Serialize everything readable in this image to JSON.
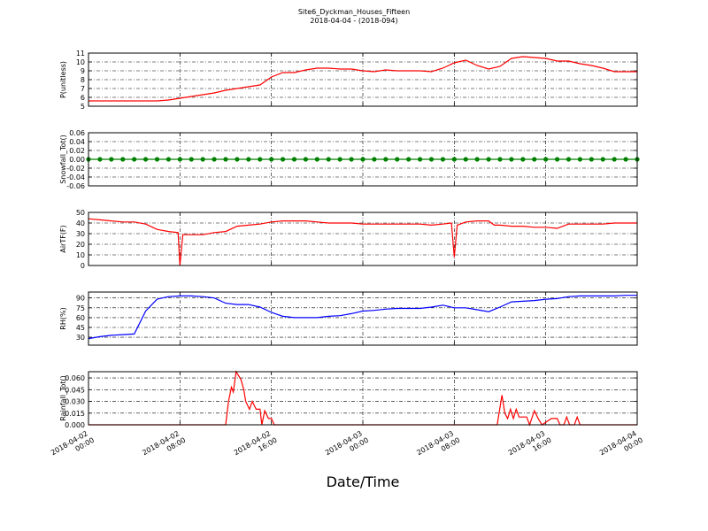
{
  "title": "Site6_Dyckman_Houses_Fifteen",
  "subtitle": "2018-04-04 - (2018-094)",
  "x_axis": {
    "label": "Date/Time",
    "xlim": [
      "2018-04-02 00:00",
      "2018-04-04 00:00"
    ],
    "xticks": [
      {
        "value": "2018-04-02 00:00",
        "label": "2018-04-02 00:00"
      },
      {
        "value": "2018-04-02 08:00",
        "label": "2018-04-02 08:00"
      },
      {
        "value": "2018-04-02 16:00",
        "label": "2018-04-02 16:00"
      },
      {
        "value": "2018-04-03 00:00",
        "label": "2018-04-03 00:00"
      },
      {
        "value": "2018-04-03 08:00",
        "label": "2018-04-03 08:00"
      },
      {
        "value": "2018-04-03 16:00",
        "label": "2018-04-03 16:00"
      },
      {
        "value": "2018-04-04 00:00",
        "label": "2018-04-04 00:00"
      }
    ]
  },
  "chart_data": [
    {
      "type": "line",
      "ylabel": "P(unitless)",
      "color": "#ff0000",
      "ylim": [
        5,
        11
      ],
      "yticks": [
        5,
        6,
        7,
        8,
        9,
        10,
        11
      ],
      "grid": true,
      "x": [
        "2018-04-02 00:00",
        "2018-04-02 01:00",
        "2018-04-02 02:00",
        "2018-04-02 03:00",
        "2018-04-02 04:00",
        "2018-04-02 05:00",
        "2018-04-02 06:00",
        "2018-04-02 07:00",
        "2018-04-02 08:00",
        "2018-04-02 09:00",
        "2018-04-02 10:00",
        "2018-04-02 11:00",
        "2018-04-02 12:00",
        "2018-04-02 13:00",
        "2018-04-02 14:00",
        "2018-04-02 15:00",
        "2018-04-02 16:00",
        "2018-04-02 17:00",
        "2018-04-02 18:00",
        "2018-04-02 19:00",
        "2018-04-02 20:00",
        "2018-04-02 21:00",
        "2018-04-02 22:00",
        "2018-04-02 23:00",
        "2018-04-03 00:00",
        "2018-04-03 01:00",
        "2018-04-03 02:00",
        "2018-04-03 03:00",
        "2018-04-03 04:00",
        "2018-04-03 05:00",
        "2018-04-03 06:00",
        "2018-04-03 07:00",
        "2018-04-03 08:00",
        "2018-04-03 09:00",
        "2018-04-03 10:00",
        "2018-04-03 11:00",
        "2018-04-03 12:00",
        "2018-04-03 13:00",
        "2018-04-03 14:00",
        "2018-04-03 15:00",
        "2018-04-03 16:00",
        "2018-04-03 17:00",
        "2018-04-03 18:00",
        "2018-04-03 19:00",
        "2018-04-03 20:00",
        "2018-04-03 21:00",
        "2018-04-03 22:00",
        "2018-04-03 23:00",
        "2018-04-04 00:00"
      ],
      "values": [
        5.6,
        5.6,
        5.6,
        5.6,
        5.6,
        5.6,
        5.6,
        5.7,
        5.9,
        6.1,
        6.3,
        6.5,
        6.8,
        7.0,
        7.2,
        7.4,
        8.3,
        8.8,
        8.8,
        9.1,
        9.3,
        9.3,
        9.2,
        9.2,
        9.0,
        8.9,
        9.1,
        9.0,
        9.0,
        9.0,
        8.9,
        9.3,
        9.9,
        10.2,
        9.6,
        9.2,
        9.5,
        10.4,
        10.6,
        10.5,
        10.4,
        10.1,
        10.1,
        9.8,
        9.6,
        9.3,
        8.9,
        8.9,
        8.9
      ]
    },
    {
      "type": "line",
      "ylabel": "Snowfall_Tot()",
      "color": "#008000",
      "marker": "o",
      "ylim": [
        -0.06,
        0.06
      ],
      "yticks": [
        -0.06,
        -0.04,
        -0.02,
        {
          "value": 0,
          "label": "0.00"
        },
        0.02,
        0.04,
        0.06
      ],
      "grid": true,
      "x": [
        "2018-04-02 00:00",
        "2018-04-02 01:00",
        "2018-04-02 02:00",
        "2018-04-02 03:00",
        "2018-04-02 04:00",
        "2018-04-02 05:00",
        "2018-04-02 06:00",
        "2018-04-02 07:00",
        "2018-04-02 08:00",
        "2018-04-02 09:00",
        "2018-04-02 10:00",
        "2018-04-02 11:00",
        "2018-04-02 12:00",
        "2018-04-02 13:00",
        "2018-04-02 14:00",
        "2018-04-02 15:00",
        "2018-04-02 16:00",
        "2018-04-02 17:00",
        "2018-04-02 18:00",
        "2018-04-02 19:00",
        "2018-04-02 20:00",
        "2018-04-02 21:00",
        "2018-04-02 22:00",
        "2018-04-02 23:00",
        "2018-04-03 00:00",
        "2018-04-03 01:00",
        "2018-04-03 02:00",
        "2018-04-03 03:00",
        "2018-04-03 04:00",
        "2018-04-03 05:00",
        "2018-04-03 06:00",
        "2018-04-03 07:00",
        "2018-04-03 08:00",
        "2018-04-03 09:00",
        "2018-04-03 10:00",
        "2018-04-03 11:00",
        "2018-04-03 12:00",
        "2018-04-03 13:00",
        "2018-04-03 14:00",
        "2018-04-03 15:00",
        "2018-04-03 16:00",
        "2018-04-03 17:00",
        "2018-04-03 18:00",
        "2018-04-03 19:00",
        "2018-04-03 20:00",
        "2018-04-03 21:00",
        "2018-04-03 22:00",
        "2018-04-03 23:00",
        "2018-04-04 00:00"
      ],
      "values": [
        0,
        0,
        0,
        0,
        0,
        0,
        0,
        0,
        0,
        0,
        0,
        0,
        0,
        0,
        0,
        0,
        0,
        0,
        0,
        0,
        0,
        0,
        0,
        0,
        0,
        0,
        0,
        0,
        0,
        0,
        0,
        0,
        0,
        0,
        0,
        0,
        0,
        0,
        0,
        0,
        0,
        0,
        0,
        0,
        0,
        0,
        0,
        0,
        0
      ]
    },
    {
      "type": "line",
      "ylabel": "AirTF(F)",
      "color": "#ff0000",
      "ylim": [
        0,
        50
      ],
      "yticks": [
        0,
        10,
        20,
        30,
        40,
        50
      ],
      "grid": true,
      "x": [
        "2018-04-02 00:00",
        "2018-04-02 01:00",
        "2018-04-02 02:00",
        "2018-04-02 03:00",
        "2018-04-02 04:00",
        "2018-04-02 05:00",
        "2018-04-02 06:00",
        "2018-04-02 07:00",
        "2018-04-02 07:50",
        "2018-04-02 08:00",
        "2018-04-02 08:15",
        "2018-04-02 09:00",
        "2018-04-02 10:00",
        "2018-04-02 11:00",
        "2018-04-02 12:00",
        "2018-04-02 13:00",
        "2018-04-02 14:00",
        "2018-04-02 15:00",
        "2018-04-02 16:00",
        "2018-04-02 17:00",
        "2018-04-02 18:00",
        "2018-04-02 19:00",
        "2018-04-02 20:00",
        "2018-04-02 21:00",
        "2018-04-02 22:00",
        "2018-04-02 23:00",
        "2018-04-03 00:00",
        "2018-04-03 01:00",
        "2018-04-03 02:00",
        "2018-04-03 03:00",
        "2018-04-03 04:00",
        "2018-04-03 05:00",
        "2018-04-03 06:00",
        "2018-04-03 07:00",
        "2018-04-03 07:45",
        "2018-04-03 08:00",
        "2018-04-03 08:15",
        "2018-04-03 09:00",
        "2018-04-03 10:00",
        "2018-04-03 11:00",
        "2018-04-03 11:30",
        "2018-04-03 12:00",
        "2018-04-03 13:00",
        "2018-04-03 14:00",
        "2018-04-03 15:00",
        "2018-04-03 16:00",
        "2018-04-03 17:00",
        "2018-04-03 18:00",
        "2018-04-03 19:00",
        "2018-04-03 20:00",
        "2018-04-03 21:00",
        "2018-04-03 22:00",
        "2018-04-03 23:00",
        "2018-04-04 00:00"
      ],
      "values": [
        44,
        43,
        42,
        41,
        41,
        39,
        34,
        32,
        31,
        0,
        29,
        29,
        29,
        31,
        32,
        37,
        38,
        39,
        41,
        42,
        42,
        42,
        41,
        40,
        40,
        40,
        39,
        39,
        39,
        39,
        39,
        39,
        38,
        39,
        40,
        8,
        38,
        41,
        42,
        42,
        38,
        38,
        37,
        37,
        36,
        36,
        35,
        39,
        39,
        39,
        39,
        40,
        40,
        40
      ]
    },
    {
      "type": "line",
      "ylabel": "RH(%)",
      "color": "#0000ff",
      "ylim": [
        18,
        99
      ],
      "yticks": [
        30,
        45,
        60,
        75,
        90
      ],
      "grid": true,
      "x": [
        "2018-04-02 00:00",
        "2018-04-02 01:00",
        "2018-04-02 02:00",
        "2018-04-02 03:00",
        "2018-04-02 04:00",
        "2018-04-02 05:00",
        "2018-04-02 06:00",
        "2018-04-02 07:00",
        "2018-04-02 08:00",
        "2018-04-02 09:00",
        "2018-04-02 10:00",
        "2018-04-02 11:00",
        "2018-04-02 12:00",
        "2018-04-02 13:00",
        "2018-04-02 14:00",
        "2018-04-02 15:00",
        "2018-04-02 16:00",
        "2018-04-02 17:00",
        "2018-04-02 18:00",
        "2018-04-02 19:00",
        "2018-04-02 20:00",
        "2018-04-02 21:00",
        "2018-04-02 22:00",
        "2018-04-02 23:00",
        "2018-04-03 00:00",
        "2018-04-03 01:00",
        "2018-04-03 02:00",
        "2018-04-03 03:00",
        "2018-04-03 04:00",
        "2018-04-03 05:00",
        "2018-04-03 06:00",
        "2018-04-03 07:00",
        "2018-04-03 08:00",
        "2018-04-03 09:00",
        "2018-04-03 10:00",
        "2018-04-03 11:00",
        "2018-04-03 12:00",
        "2018-04-03 13:00",
        "2018-04-03 14:00",
        "2018-04-03 15:00",
        "2018-04-03 16:00",
        "2018-04-03 17:00",
        "2018-04-03 18:00",
        "2018-04-03 19:00",
        "2018-04-03 20:00",
        "2018-04-03 21:00",
        "2018-04-03 22:00",
        "2018-04-03 23:00",
        "2018-04-04 00:00"
      ],
      "values": [
        28,
        31,
        33,
        34,
        35,
        70,
        88,
        92,
        93,
        93,
        92,
        90,
        82,
        80,
        80,
        76,
        68,
        62,
        60,
        60,
        60,
        62,
        63,
        66,
        70,
        71,
        73,
        74,
        74,
        74,
        76,
        79,
        75,
        75,
        72,
        69,
        76,
        84,
        85,
        86,
        88,
        89,
        92,
        93,
        93,
        93,
        93,
        94,
        94
      ]
    },
    {
      "type": "line",
      "ylabel": "Rainfall_Tot()",
      "color": "#ff0000",
      "ylim": [
        0,
        0.068
      ],
      "yticks": [
        {
          "value": 0,
          "label": "0.000"
        },
        {
          "value": 0.015,
          "label": "0.015"
        },
        {
          "value": 0.03,
          "label": "0.030"
        },
        {
          "value": 0.045,
          "label": "0.045"
        },
        {
          "value": 0.06,
          "label": "0.060"
        }
      ],
      "grid": true,
      "x": [
        "2018-04-02 00:00",
        "2018-04-02 12:00",
        "2018-04-02 12:15",
        "2018-04-02 12:30",
        "2018-04-02 12:40",
        "2018-04-02 12:55",
        "2018-04-02 13:20",
        "2018-04-02 13:35",
        "2018-04-02 13:45",
        "2018-04-02 14:05",
        "2018-04-02 14:20",
        "2018-04-02 14:40",
        "2018-04-02 15:00",
        "2018-04-02 15:10",
        "2018-04-02 15:25",
        "2018-04-02 15:45",
        "2018-04-02 16:00",
        "2018-04-02 16:15",
        "2018-04-03 11:45",
        "2018-04-03 12:10",
        "2018-04-03 12:25",
        "2018-04-03 12:40",
        "2018-04-03 12:55",
        "2018-04-03 13:10",
        "2018-04-03 13:25",
        "2018-04-03 13:40",
        "2018-04-03 14:00",
        "2018-04-03 14:20",
        "2018-04-03 14:35",
        "2018-04-03 15:00",
        "2018-04-03 15:20",
        "2018-04-03 15:40",
        "2018-04-03 16:30",
        "2018-04-03 17:00",
        "2018-04-03 17:15",
        "2018-04-03 17:35",
        "2018-04-03 17:50",
        "2018-04-03 18:05",
        "2018-04-03 18:30",
        "2018-04-03 18:45",
        "2018-04-03 19:00",
        "2018-04-04 00:00"
      ],
      "values": [
        0,
        0,
        0.03,
        0.048,
        0.042,
        0.068,
        0.058,
        0.045,
        0.03,
        0.02,
        0.03,
        0.02,
        0.02,
        0,
        0.018,
        0.008,
        0.008,
        0,
        0,
        0.038,
        0.015,
        0.008,
        0.02,
        0.008,
        0.02,
        0.01,
        0.01,
        0.01,
        0,
        0.018,
        0.008,
        0,
        0.008,
        0.008,
        0,
        0,
        0.01,
        0,
        0,
        0.01,
        0,
        0
      ]
    }
  ]
}
